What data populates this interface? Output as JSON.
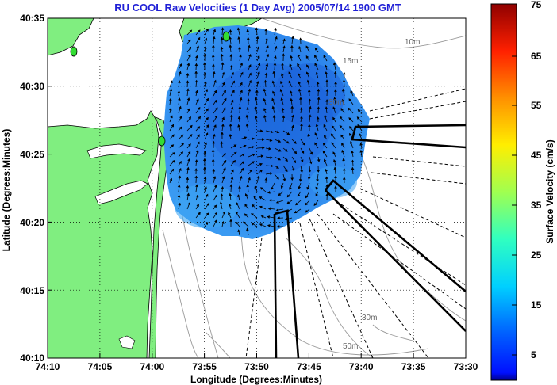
{
  "chart_data": {
    "type": "map",
    "title": "RU COOL Raw Velocities (1 Day Avg) 2005/07/14 1900 GMT",
    "xlabel": "Longitude (Degrees:Minutes)",
    "ylabel": "Latitude (Degrees:Minutes)",
    "x_ticks": [
      "74:10",
      "74:05",
      "74:00",
      "73:55",
      "73:50",
      "73:45",
      "73:40",
      "73:35",
      "73:30"
    ],
    "y_ticks": [
      "40:35",
      "40:30",
      "40:25",
      "40:20",
      "40:15",
      "40:10"
    ],
    "x_range_minutes_west": [
      600,
      570
    ],
    "y_range_minutes_north": [
      2450,
      2435
    ],
    "grid": true,
    "depth_contours": [
      "10m",
      "15m",
      "30m",
      "30m",
      "50m"
    ],
    "colorbar": {
      "label": "Surface Velocity (cm/s)",
      "ticks": [
        "75",
        "65",
        "55",
        "45",
        "35",
        "25",
        "15",
        "5"
      ],
      "range": [
        0,
        75
      ],
      "colormap": "jet"
    },
    "colors": {
      "land": "#80ee80",
      "title": "#1f1fd6",
      "station": "#33dd33",
      "coverage_main": "#2f86ea"
    }
  }
}
